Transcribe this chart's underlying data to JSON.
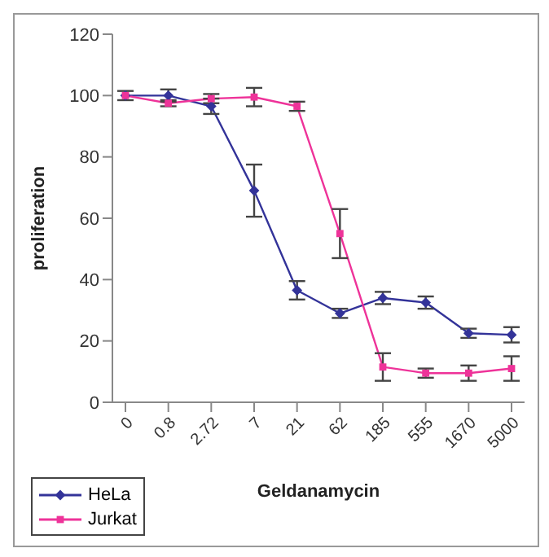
{
  "chart_data": {
    "type": "line",
    "xlabel": "Geldanamycin",
    "ylabel": "proliferation",
    "categories": [
      "0",
      "0.8",
      "2.72",
      "7",
      "21",
      "62",
      "185",
      "555",
      "1670",
      "5000"
    ],
    "series": [
      {
        "name": "HeLa",
        "color": "#333399",
        "marker": "diamond",
        "values": [
          100,
          100,
          96.5,
          69,
          36.5,
          29,
          34,
          32.5,
          22.5,
          22
        ],
        "errors": [
          null,
          2,
          2.5,
          8.5,
          3,
          1.5,
          2,
          2,
          1.5,
          2.5
        ]
      },
      {
        "name": "Jurkat",
        "color": "#ee3399",
        "marker": "square",
        "values": [
          100,
          97.5,
          99,
          99.5,
          96.5,
          55,
          11.5,
          9.5,
          9.5,
          11
        ],
        "errors": [
          1.5,
          1,
          1.5,
          3,
          1.5,
          8,
          4.5,
          1.5,
          2.5,
          4
        ]
      }
    ],
    "ylim": [
      0,
      120
    ],
    "yticks": [
      0,
      20,
      40,
      60,
      80,
      100,
      120
    ],
    "grid": false,
    "legend": "bottom left"
  }
}
